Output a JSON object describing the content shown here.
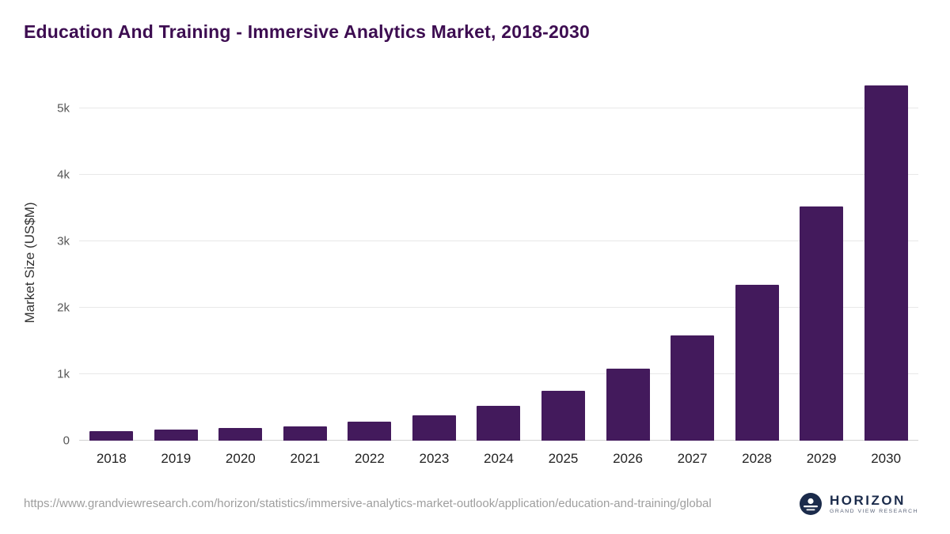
{
  "title": "Education And Training - Immersive Analytics Market, 2018-2030",
  "chart_data": {
    "type": "bar",
    "title": "Education And Training - Immersive Analytics Market, 2018-2030",
    "categories": [
      "2018",
      "2019",
      "2020",
      "2021",
      "2022",
      "2023",
      "2024",
      "2025",
      "2026",
      "2027",
      "2028",
      "2029",
      "2030"
    ],
    "values": [
      140,
      165,
      185,
      215,
      290,
      385,
      525,
      755,
      1080,
      1580,
      2340,
      3520,
      5350
    ],
    "xlabel": "",
    "ylabel": "Market Size (US$M)",
    "ylim": [
      0,
      5400
    ],
    "yticks": [
      {
        "value": 0,
        "label": "0"
      },
      {
        "value": 1000,
        "label": "1k"
      },
      {
        "value": 2000,
        "label": "2k"
      },
      {
        "value": 3000,
        "label": "3k"
      },
      {
        "value": 4000,
        "label": "4k"
      },
      {
        "value": 5000,
        "label": "5k"
      }
    ],
    "grid": true,
    "legend": "none",
    "bar_color": "#431a5c"
  },
  "footer": {
    "source_url": "https://www.grandviewresearch.com/horizon/statistics/immersive-analytics-market-outlook/application/education-and-training/global",
    "logo_title": "HORIZON",
    "logo_subtitle": "GRAND VIEW RESEARCH"
  },
  "colors": {
    "title_text": "#3d0d51",
    "bar": "#431a5c",
    "axis_text": "#222222",
    "tick_text": "#555555",
    "gridline": "#e8e8e8",
    "footer_text": "#9e9e9e",
    "logo_navy": "#1b2b4b"
  },
  "icons": {
    "logo_icon": "horizon-circle-icon"
  }
}
